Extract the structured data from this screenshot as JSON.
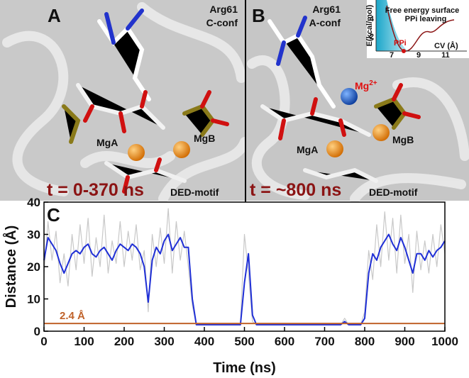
{
  "panel_a": {
    "letter": "A",
    "residue": "Arg61",
    "conf": "C-conf",
    "mga": "MgA",
    "mgb": "MgB",
    "time": "t = 0-370 ns",
    "motif": "DED-motif"
  },
  "panel_b": {
    "letter": "B",
    "residue": "Arg61",
    "conf": "A-conf",
    "mg": "Mg",
    "charge": "2+",
    "mga": "MgA",
    "mgb": "MgB",
    "time": "t = ~800 ns",
    "motif": "DED-motif",
    "inset": {
      "title": "Free energy surface",
      "subtitle": "PPi leaving",
      "ylabel": "E(kcal/mol)",
      "xlabel": "CV (Å)",
      "marker": "PPi",
      "xticks": [
        "7",
        "9",
        "11"
      ],
      "yticks": [
        "4",
        "2"
      ]
    }
  },
  "chart_data": {
    "type": "line",
    "panel_letter": "C",
    "xlabel": "Time (ns)",
    "ylabel": "Distance (Å)",
    "xlim": [
      0,
      1000
    ],
    "xticks": [
      0,
      100,
      200,
      300,
      400,
      500,
      600,
      700,
      800,
      900,
      1000
    ],
    "ylim": [
      0,
      40
    ],
    "yticks": [
      0,
      10,
      20,
      30,
      40
    ],
    "grid": false,
    "reference_line": {
      "value": 2.4,
      "label": "2.4 Å",
      "color": "#c0622a"
    },
    "x": [
      0,
      10,
      20,
      30,
      40,
      50,
      60,
      70,
      80,
      90,
      100,
      110,
      120,
      130,
      140,
      150,
      160,
      170,
      180,
      190,
      200,
      210,
      220,
      230,
      240,
      250,
      260,
      270,
      280,
      290,
      300,
      310,
      320,
      330,
      340,
      350,
      360,
      370,
      380,
      390,
      400,
      410,
      420,
      430,
      440,
      450,
      460,
      470,
      480,
      490,
      500,
      510,
      520,
      530,
      540,
      550,
      560,
      570,
      580,
      590,
      600,
      610,
      620,
      630,
      640,
      650,
      660,
      670,
      680,
      690,
      700,
      710,
      720,
      730,
      740,
      750,
      760,
      770,
      780,
      790,
      800,
      810,
      820,
      830,
      840,
      850,
      860,
      870,
      880,
      890,
      900,
      910,
      920,
      930,
      940,
      950,
      960,
      970,
      980,
      990,
      1000
    ],
    "series": [
      {
        "color": "#c8c8c8",
        "values": [
          18,
          34,
          22,
          31,
          15,
          24,
          14,
          30,
          19,
          33,
          21,
          35,
          17,
          29,
          20,
          36,
          18,
          28,
          21,
          34,
          20,
          31,
          22,
          33,
          19,
          25,
          6,
          30,
          20,
          32,
          21,
          38,
          18,
          34,
          22,
          31,
          20,
          8,
          2,
          2,
          2,
          2,
          2,
          2,
          2,
          2,
          2,
          2,
          2,
          2,
          30,
          18,
          3,
          2,
          2,
          2,
          2,
          2,
          2,
          2,
          2,
          2,
          2,
          2,
          2,
          2,
          2,
          2,
          2,
          2,
          2,
          2,
          2,
          2,
          2,
          4,
          2,
          2,
          2,
          2,
          6,
          25,
          16,
          33,
          20,
          37,
          22,
          35,
          18,
          36,
          21,
          30,
          12,
          31,
          19,
          28,
          18,
          30,
          20,
          33,
          24
        ]
      },
      {
        "color": "#1f2fd6",
        "values": [
          22,
          29,
          27,
          25,
          21,
          18,
          21,
          24,
          25,
          24,
          26,
          27,
          24,
          23,
          25,
          26,
          24,
          22,
          25,
          27,
          26,
          25,
          27,
          26,
          24,
          20,
          9,
          22,
          26,
          24,
          28,
          30,
          25,
          27,
          29,
          26,
          26,
          10,
          2,
          2,
          2,
          2,
          2,
          2,
          2,
          2,
          2,
          2,
          2,
          2,
          15,
          24,
          5,
          2,
          2,
          2,
          2,
          2,
          2,
          2,
          2,
          2,
          2,
          2,
          2,
          2,
          2,
          2,
          2,
          2,
          2,
          2,
          2,
          2,
          2,
          3,
          2,
          2,
          2,
          2,
          4,
          18,
          24,
          22,
          26,
          28,
          30,
          27,
          25,
          29,
          26,
          22,
          18,
          24,
          24,
          22,
          25,
          23,
          25,
          26,
          28
        ]
      }
    ]
  }
}
